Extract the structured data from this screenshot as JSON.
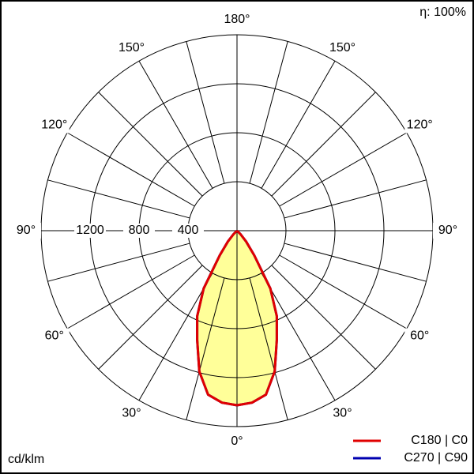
{
  "chart_data": {
    "type": "polar",
    "unit_label": "cd/klm",
    "efficiency_label": "η: 100%",
    "rlim": [
      0,
      1600
    ],
    "rticks": [
      400,
      800,
      1200
    ],
    "grid_angles": [
      0,
      15,
      30,
      45,
      60,
      75,
      90,
      105,
      120,
      135,
      150,
      165,
      180
    ],
    "angle_ticks": [
      {
        "value": 0,
        "label": "0°"
      },
      {
        "value": 30,
        "label": "30°"
      },
      {
        "value": 60,
        "label": "60°"
      },
      {
        "value": 90,
        "label": "90°"
      },
      {
        "value": 120,
        "label": "120°"
      },
      {
        "value": 150,
        "label": "150°"
      },
      {
        "value": 180,
        "label": "180°"
      }
    ],
    "fill_color": "#ffff99",
    "angles": [
      0,
      5,
      10,
      15,
      20,
      25,
      30,
      35,
      40,
      45,
      50
    ],
    "series": [
      {
        "name": "C180 | C0",
        "color": "#e00000",
        "values": [
          1426,
          1410,
          1360,
          1190,
          950,
          770,
          545,
          245,
          115,
          40,
          0
        ]
      },
      {
        "name": "C270 | C90",
        "color": "#0000b0",
        "values": [
          1426,
          1410,
          1360,
          1190,
          950,
          770,
          545,
          245,
          115,
          40,
          0
        ]
      }
    ]
  }
}
